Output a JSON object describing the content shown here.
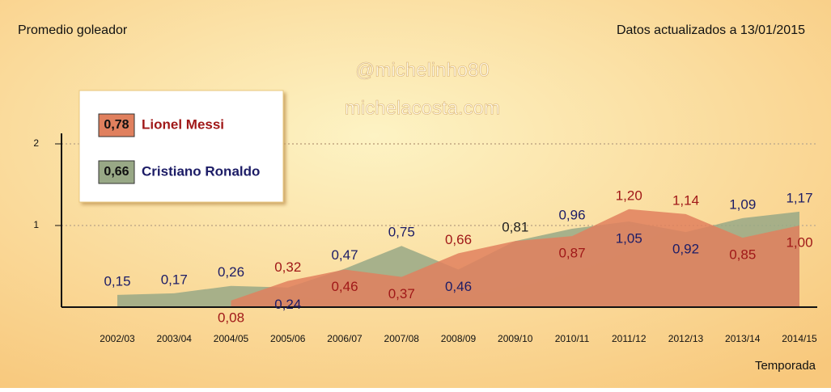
{
  "chart_data": {
    "type": "area",
    "y_label": "Promedio goleador",
    "subtitle": "Datos actualizados a 13/01/2015",
    "watermarks": [
      "@michelinho80",
      "michelacosta.com"
    ],
    "x_label": "Temporada",
    "categories": [
      "2002/03",
      "2003/04",
      "2004/05",
      "2005/06",
      "2006/07",
      "2007/08",
      "2008/09",
      "2009/10",
      "2010/11",
      "2011/12",
      "2012/13",
      "2013/14",
      "2014/15"
    ],
    "series": [
      {
        "name": "Cristiano Ronaldo",
        "color": "#98a886",
        "label_color": "#1c1c66",
        "average": 0.66,
        "average_label": "0,66",
        "values": [
          0.15,
          0.17,
          0.26,
          0.24,
          0.47,
          0.75,
          0.46,
          0.81,
          0.96,
          1.05,
          0.92,
          1.09,
          1.17
        ],
        "value_labels": [
          "0,15",
          "0,17",
          "0,26",
          "0,24",
          "0,47",
          "0,75",
          "0,46",
          "0,81",
          "0,96",
          "1,05",
          "0,92",
          "1,09",
          "1,17"
        ]
      },
      {
        "name": "Lionel Messi",
        "color": "#e0805e",
        "label_color": "#a01818",
        "average": 0.78,
        "average_label": "0,78",
        "values": [
          null,
          null,
          0.08,
          0.32,
          0.46,
          0.37,
          0.66,
          0.81,
          0.87,
          1.2,
          1.14,
          0.85,
          1.0
        ],
        "value_labels": [
          null,
          null,
          "0,08",
          "0,32",
          "0,46",
          "0,37",
          "0,66",
          null,
          "0,87",
          "1,20",
          "1,14",
          "0,85",
          "1,00"
        ]
      }
    ],
    "ylim": [
      0,
      2
    ],
    "yticks": [
      1,
      2
    ],
    "grid": true
  }
}
